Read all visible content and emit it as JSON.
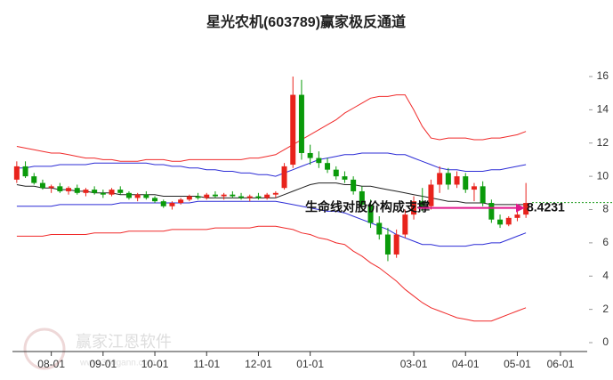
{
  "chart_data": {
    "type": "candlestick",
    "title": "星光农机(603789)赢家极反通道",
    "categories": [
      null,
      null,
      null,
      null,
      "08-01",
      null,
      null,
      null,
      null,
      null,
      "09-01",
      null,
      null,
      null,
      null,
      null,
      "10-01",
      null,
      null,
      null,
      null,
      null,
      "11-01",
      null,
      null,
      null,
      null,
      null,
      "12-01",
      null,
      null,
      null,
      null,
      null,
      "01-01",
      null,
      null,
      null,
      null,
      null,
      null,
      null,
      null,
      null,
      null,
      null,
      "03-01",
      null,
      null,
      null,
      null,
      null,
      "04-01",
      null,
      null,
      null,
      null,
      null,
      "05-01",
      null,
      null,
      null,
      null,
      "06-01"
    ],
    "open": [
      9.8,
      10.6,
      10.0,
      9.6,
      9.3,
      9.4,
      9.1,
      9.3,
      9.0,
      9.2,
      9.0,
      8.9,
      9.2,
      9.0,
      8.7,
      8.9,
      8.7,
      8.5,
      8.2,
      8.4,
      8.6,
      8.8,
      8.7,
      8.9,
      8.8,
      8.9,
      8.8,
      8.7,
      8.8,
      8.7,
      8.9,
      9.3,
      10.7,
      14.9,
      11.4,
      11.1,
      10.8,
      10.4,
      10.0,
      9.8,
      9.1,
      8.3,
      7.2,
      6.5,
      5.3,
      6.5,
      7.7,
      8.5,
      8.2,
      9.5,
      10.2,
      9.5,
      10.0,
      9.2,
      9.4,
      8.4,
      7.4,
      7.1,
      7.5,
      7.7,
      null,
      null,
      null,
      null
    ],
    "high": [
      10.9,
      10.9,
      10.2,
      9.8,
      9.5,
      9.6,
      9.4,
      9.5,
      9.3,
      9.4,
      9.2,
      9.3,
      9.4,
      9.1,
      9.0,
      9.1,
      8.8,
      8.6,
      8.5,
      8.7,
      8.9,
      9.0,
      9.0,
      9.1,
      9.0,
      9.1,
      9.0,
      8.9,
      9.0,
      9.0,
      9.1,
      10.8,
      16.0,
      15.8,
      11.9,
      11.5,
      11.1,
      10.6,
      10.3,
      10.0,
      9.4,
      8.6,
      7.6,
      6.9,
      6.8,
      8.0,
      8.8,
      9.3,
      9.8,
      10.6,
      10.5,
      10.3,
      10.2,
      9.6,
      9.7,
      8.6,
      7.7,
      7.6,
      8.0,
      9.6,
      null,
      null,
      null,
      null
    ],
    "low": [
      9.6,
      9.9,
      9.5,
      9.2,
      9.0,
      9.0,
      8.9,
      8.9,
      8.8,
      8.9,
      8.7,
      8.8,
      8.9,
      8.6,
      8.5,
      8.6,
      8.4,
      8.1,
      8.0,
      8.3,
      8.5,
      8.6,
      8.6,
      8.7,
      8.6,
      8.7,
      8.6,
      8.5,
      8.6,
      8.6,
      8.7,
      9.2,
      10.5,
      11.0,
      10.7,
      10.5,
      10.2,
      9.8,
      9.6,
      8.9,
      8.0,
      6.9,
      6.2,
      4.9,
      5.1,
      6.3,
      7.4,
      7.9,
      8.0,
      9.0,
      9.2,
      9.3,
      9.0,
      8.5,
      8.2,
      7.2,
      6.9,
      7.0,
      7.3,
      7.5,
      null,
      null,
      null,
      null
    ],
    "close": [
      10.6,
      10.0,
      9.6,
      9.3,
      9.4,
      9.1,
      9.3,
      9.0,
      9.2,
      9.0,
      8.9,
      9.2,
      9.0,
      8.7,
      8.9,
      8.7,
      8.5,
      8.2,
      8.4,
      8.6,
      8.8,
      8.7,
      8.9,
      8.8,
      8.9,
      8.8,
      8.7,
      8.8,
      8.7,
      8.9,
      9.0,
      10.6,
      14.9,
      11.4,
      11.1,
      10.8,
      10.4,
      10.0,
      9.8,
      9.1,
      8.3,
      7.2,
      6.5,
      5.3,
      6.5,
      7.7,
      8.5,
      8.2,
      9.5,
      10.2,
      9.5,
      10.0,
      9.2,
      9.4,
      8.4,
      7.4,
      7.1,
      7.5,
      7.7,
      8.4,
      null,
      null,
      null,
      null
    ],
    "up_color": "#e8231c",
    "down_color": "#0a9a0a",
    "series": [
      {
        "color": "#f02a2a",
        "values": [
          11.8,
          11.7,
          11.6,
          11.5,
          11.4,
          11.4,
          11.3,
          11.2,
          11.1,
          11.1,
          11.0,
          11.0,
          10.9,
          10.9,
          10.9,
          11.0,
          11.0,
          11.0,
          10.9,
          10.9,
          11.0,
          11.0,
          11.0,
          11.0,
          11.0,
          11.0,
          11.0,
          11.1,
          11.1,
          11.2,
          11.3,
          11.6,
          11.9,
          12.2,
          12.5,
          12.8,
          13.1,
          13.4,
          13.8,
          14.1,
          14.4,
          14.7,
          14.8,
          14.8,
          14.9,
          14.9,
          14.0,
          13.0,
          12.3,
          12.2,
          12.3,
          12.3,
          12.3,
          12.2,
          12.2,
          12.3,
          12.3,
          12.4,
          12.5,
          12.7,
          null,
          null,
          null,
          null
        ]
      },
      {
        "color": "#2c2cd6",
        "values": [
          10.5,
          10.5,
          10.6,
          10.6,
          10.6,
          10.7,
          10.7,
          10.7,
          10.7,
          10.8,
          10.8,
          10.8,
          10.8,
          10.8,
          10.8,
          10.8,
          10.7,
          10.7,
          10.6,
          10.6,
          10.5,
          10.5,
          10.4,
          10.4,
          10.3,
          10.3,
          10.2,
          10.2,
          10.1,
          10.1,
          10.0,
          10.2,
          10.4,
          10.6,
          10.8,
          11.0,
          11.1,
          11.2,
          11.3,
          11.3,
          11.4,
          11.4,
          11.4,
          11.4,
          11.3,
          11.3,
          11.1,
          10.9,
          10.7,
          10.5,
          10.4,
          10.4,
          10.3,
          10.3,
          10.3,
          10.4,
          10.4,
          10.5,
          10.6,
          10.7,
          null,
          null,
          null,
          null
        ]
      },
      {
        "color": "#222222",
        "values": [
          9.5,
          9.4,
          9.4,
          9.3,
          9.3,
          9.2,
          9.2,
          9.1,
          9.1,
          9.0,
          9.0,
          9.0,
          8.9,
          8.9,
          8.9,
          8.9,
          8.9,
          8.8,
          8.8,
          8.8,
          8.8,
          8.8,
          8.7,
          8.7,
          8.7,
          8.7,
          8.7,
          8.7,
          8.7,
          8.7,
          8.7,
          8.9,
          9.1,
          9.3,
          9.5,
          9.6,
          9.6,
          9.6,
          9.5,
          9.5,
          9.4,
          9.4,
          9.3,
          9.2,
          9.1,
          9.0,
          8.9,
          8.8,
          8.7,
          8.6,
          8.5,
          8.5,
          8.4,
          8.4,
          8.4,
          8.3,
          8.3,
          8.3,
          8.3,
          8.3,
          null,
          null,
          null,
          null
        ]
      },
      {
        "color": "#2c2cd6",
        "values": [
          8.2,
          8.2,
          8.2,
          8.2,
          8.2,
          8.3,
          8.3,
          8.3,
          8.3,
          8.3,
          8.3,
          8.3,
          8.4,
          8.4,
          8.4,
          8.4,
          8.4,
          8.4,
          8.4,
          8.4,
          8.4,
          8.5,
          8.5,
          8.5,
          8.5,
          8.5,
          8.5,
          8.5,
          8.5,
          8.5,
          8.5,
          8.4,
          8.3,
          8.2,
          8.1,
          8.0,
          7.9,
          7.9,
          7.8,
          7.6,
          7.4,
          7.2,
          7.0,
          6.8,
          6.5,
          6.3,
          6.1,
          5.9,
          5.9,
          5.8,
          5.8,
          5.8,
          5.8,
          5.9,
          5.9,
          6.0,
          6.0,
          6.2,
          6.4,
          6.6,
          null,
          null,
          null,
          null
        ]
      },
      {
        "color": "#f02a2a",
        "values": [
          6.4,
          6.4,
          6.4,
          6.4,
          6.5,
          6.5,
          6.5,
          6.5,
          6.5,
          6.6,
          6.6,
          6.6,
          6.6,
          6.7,
          6.7,
          6.7,
          6.7,
          6.7,
          6.8,
          6.8,
          6.8,
          6.8,
          6.8,
          6.9,
          6.9,
          6.9,
          6.9,
          6.9,
          7.0,
          7.0,
          7.0,
          6.9,
          6.8,
          6.6,
          6.5,
          6.3,
          6.2,
          6.0,
          5.9,
          5.5,
          5.2,
          4.8,
          4.5,
          4.1,
          3.7,
          3.2,
          2.8,
          2.4,
          2.1,
          1.9,
          1.7,
          1.5,
          1.4,
          1.3,
          1.3,
          1.3,
          1.5,
          1.7,
          1.9,
          2.1,
          null,
          null,
          null,
          null
        ]
      }
    ],
    "ylim": [
      0,
      16
    ],
    "yticks": [
      0,
      2,
      4,
      6,
      8,
      10,
      12,
      14,
      16
    ],
    "annotation": "生命线对股价构成支撑",
    "annotation_color": "#e0198c",
    "last_price": 8.4231,
    "last_price_color": "#1a9a1a",
    "watermark": "赢家江恩软件",
    "watermark_url": "www.360gann.com"
  }
}
